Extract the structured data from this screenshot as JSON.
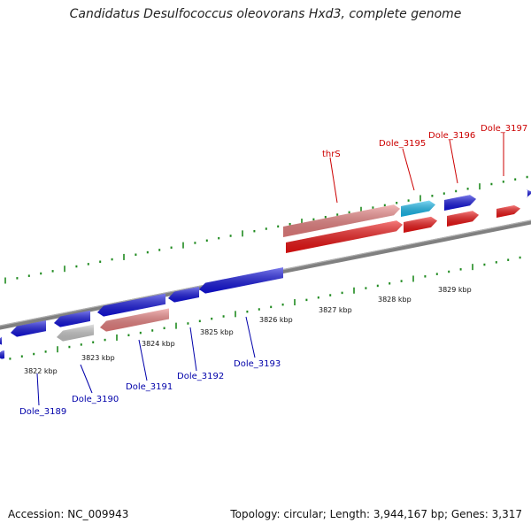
{
  "title": "Candidatus Desulfococcus oleovorans Hxd3, complete genome",
  "footer": {
    "accession": "Accession: NC_009943",
    "summary": "Topology: circular; Length: 3,944,167 bp; Genes: 3,317"
  },
  "colors": {
    "forward_label": "#cc0000",
    "reverse_label": "#0000aa",
    "forward_gene": "#ee1111",
    "forward_other": "#e98080",
    "forward_cyan": "#19bbee",
    "reverse_gene": "#1111dd",
    "reverse_grey": "#c8c8c8",
    "reverse_salmon": "#e98080",
    "backbone": "#808080",
    "tick": "#1f8a1f"
  },
  "scale": {
    "unit": "kbp",
    "labels": [
      "3822 kbp",
      "3823 kbp",
      "3824 kbp",
      "3825 kbp",
      "3826 kbp",
      "3827 kbp",
      "3828 kbp",
      "3829 kbp"
    ]
  },
  "forward_genes": [
    {
      "name": "thrS",
      "label": "thrS",
      "color": "forward_other"
    },
    {
      "name": "Dole_3195",
      "label": "Dole_3195",
      "color": "forward_cyan"
    },
    {
      "name": "Dole_3196",
      "label": "Dole_3196",
      "color": "reverse_gene"
    },
    {
      "name": "Dole_3197",
      "label": "Dole_3197",
      "color": "forward_gene"
    }
  ],
  "reverse_genes": [
    {
      "name": "Dole_3189",
      "label": "Dole_3189"
    },
    {
      "name": "Dole_3190",
      "label": "Dole_3190"
    },
    {
      "name": "Dole_3191",
      "label": "Dole_3191"
    },
    {
      "name": "Dole_3192",
      "label": "Dole_3192"
    },
    {
      "name": "Dole_3193",
      "label": "Dole_3193"
    }
  ]
}
